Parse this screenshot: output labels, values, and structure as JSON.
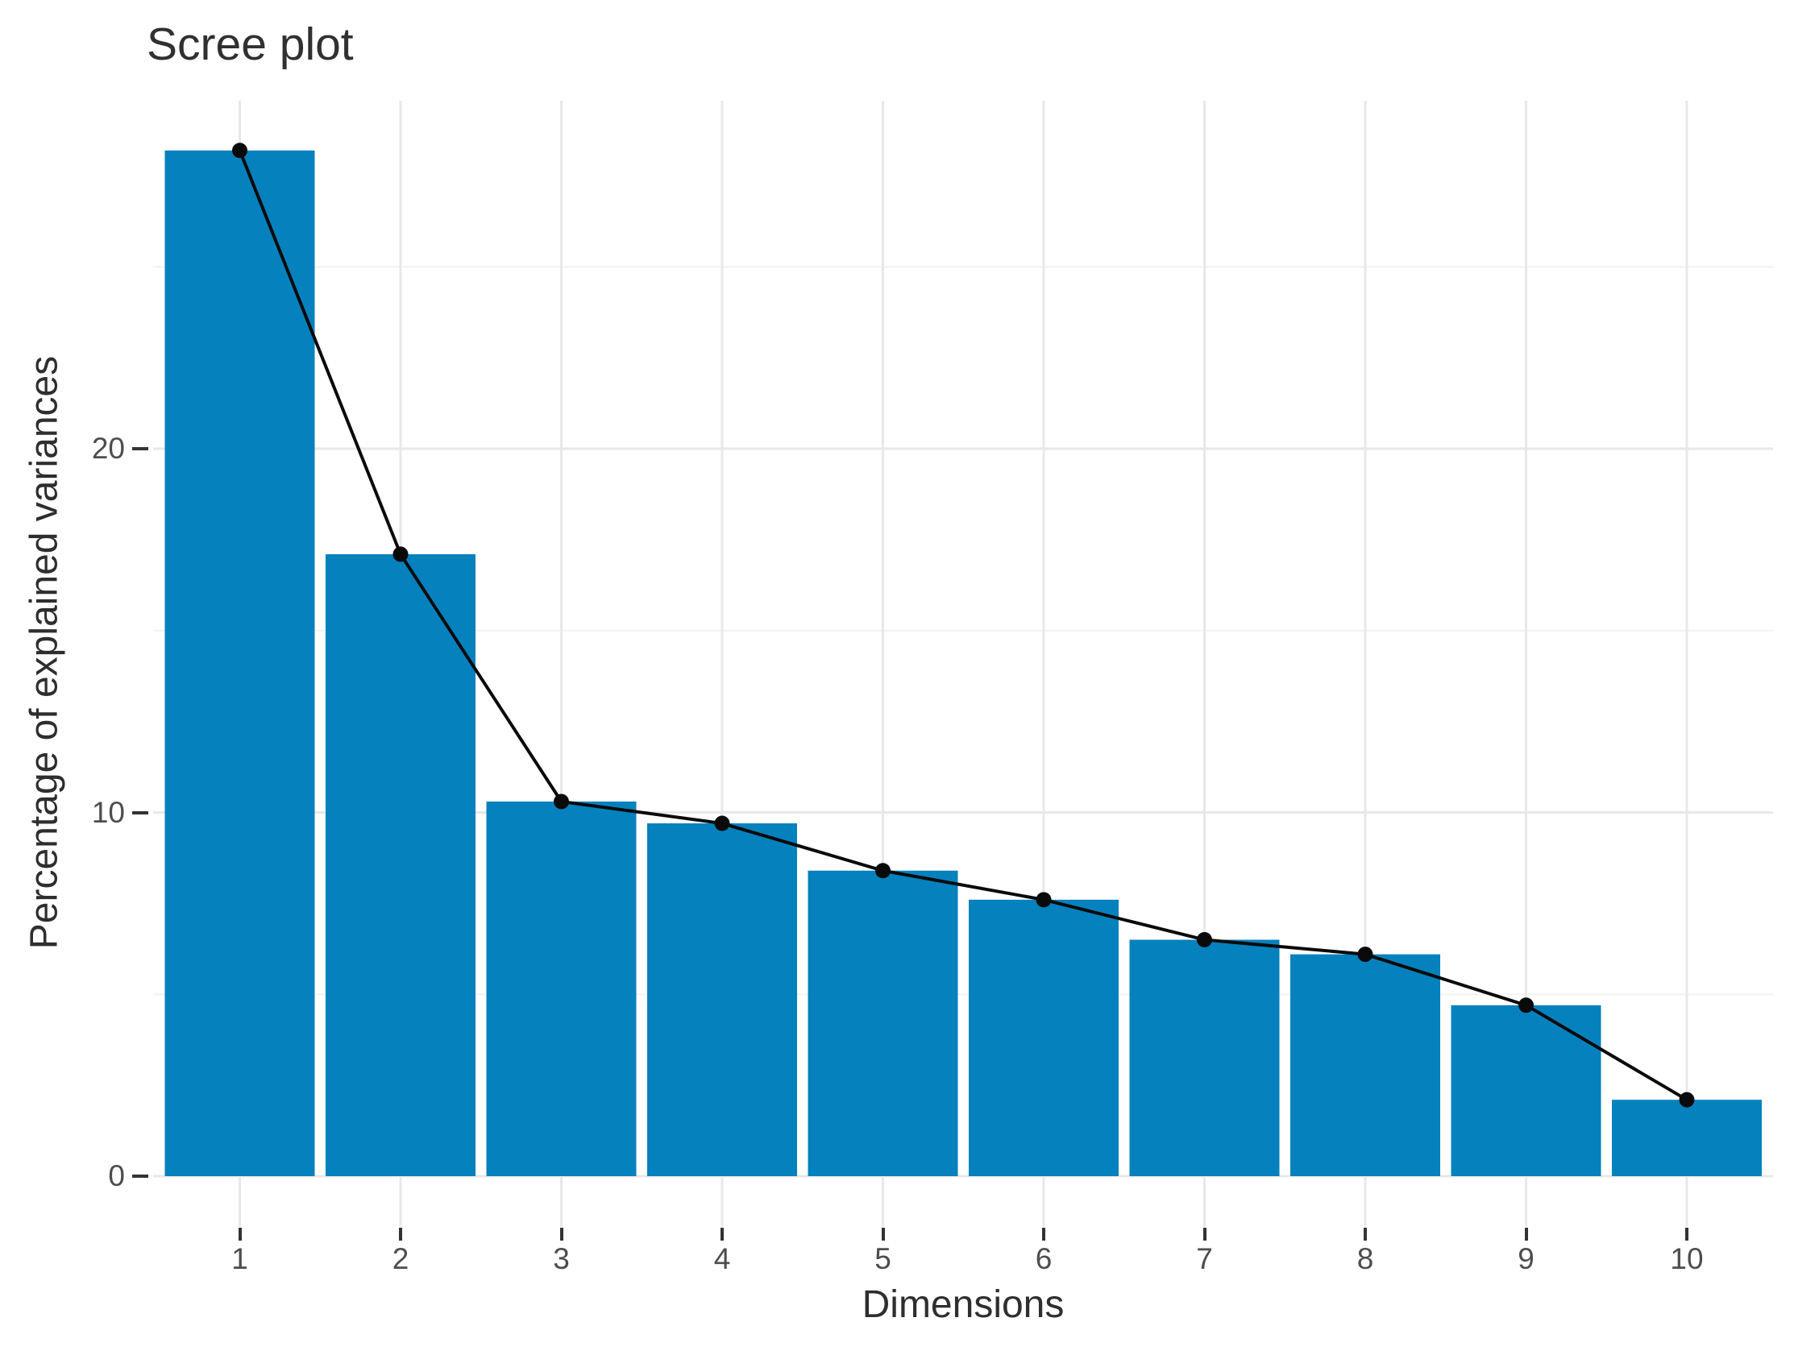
{
  "title": "Scree plot",
  "chart_data": {
    "type": "bar",
    "overlay": "line+points",
    "title": "Scree plot",
    "xlabel": "Dimensions",
    "ylabel": "Percentage of explained variances",
    "categories": [
      "1",
      "2",
      "3",
      "4",
      "5",
      "6",
      "7",
      "8",
      "9",
      "10"
    ],
    "values": [
      28.2,
      17.1,
      10.3,
      9.7,
      8.4,
      7.6,
      6.5,
      6.1,
      4.7,
      2.1
    ],
    "series": [
      {
        "name": "percentage-of-explained-variances-bars",
        "values": [
          28.2,
          17.1,
          10.3,
          9.7,
          8.4,
          7.6,
          6.5,
          6.1,
          4.7,
          2.1
        ]
      },
      {
        "name": "connecting-line-points",
        "values": [
          28.2,
          17.1,
          10.3,
          9.7,
          8.4,
          7.6,
          6.5,
          6.1,
          4.7,
          2.1
        ]
      }
    ],
    "ylim": [
      -1.4,
      29.6
    ],
    "yticks": [
      0,
      10,
      20
    ],
    "yticks_minor": [
      5,
      15,
      25
    ],
    "grid": true,
    "legend": "none",
    "colors": {
      "bar_fill": "#0581BD",
      "line": "#0a0a0a",
      "point": "#0a0a0a",
      "grid_major": "#e8e8e8",
      "grid_minor": "#f2f2f2",
      "tick_mark": "#333333",
      "tick_label": "#4d4d4d",
      "axis_title": "#2e2e2e",
      "title": "#303030",
      "background": "#ffffff"
    }
  }
}
